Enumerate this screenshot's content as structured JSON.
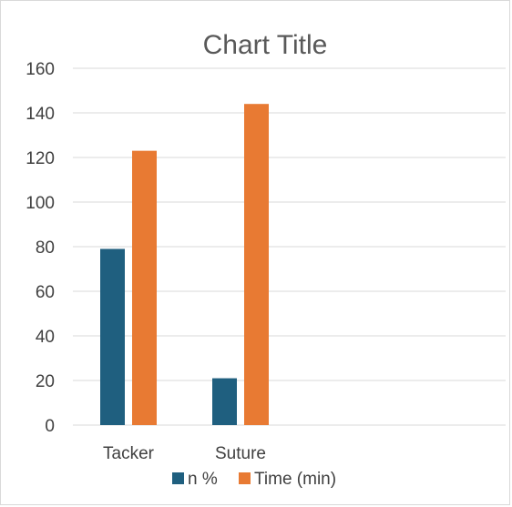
{
  "chart_data": {
    "type": "bar",
    "title": "Chart Title",
    "xlabel": "",
    "ylabel": "",
    "categories": [
      "Tacker",
      "Suture"
    ],
    "series": [
      {
        "name": "n %",
        "values": [
          79,
          21
        ],
        "color": "#1f5f7f"
      },
      {
        "name": "Time (min)",
        "values": [
          123,
          144
        ],
        "color": "#e87a33"
      }
    ],
    "ylim": [
      0,
      160
    ],
    "yticks": [
      0,
      20,
      40,
      60,
      80,
      100,
      120,
      140,
      160
    ],
    "grid": true,
    "legend_position": "bottom"
  }
}
